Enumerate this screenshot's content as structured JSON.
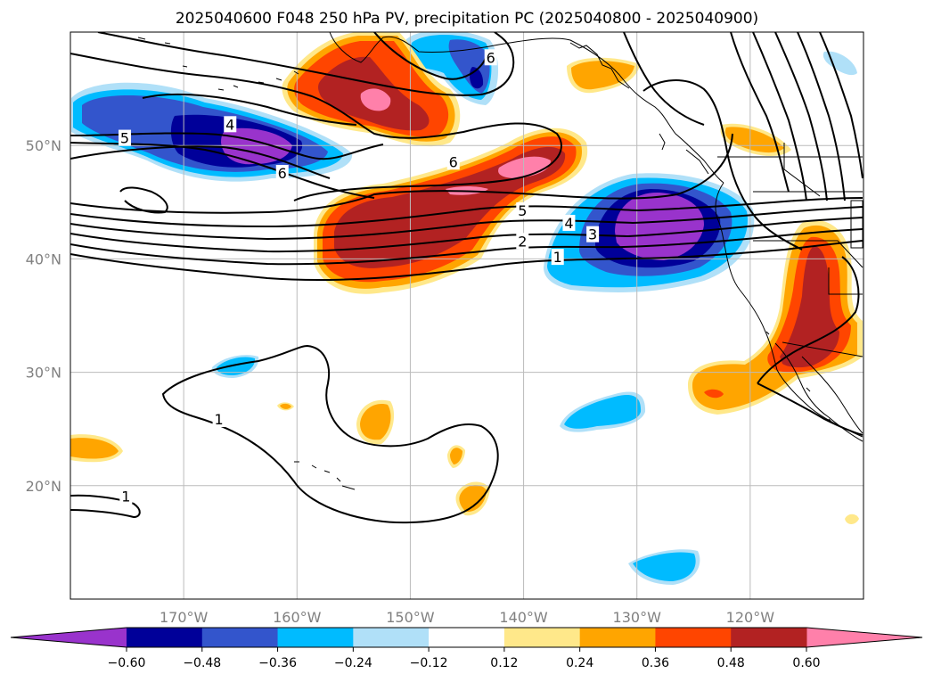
{
  "title": "2025040600 F048 250 hPa PV, precipitation PC (2025040800 - 2025040900)",
  "colors": {
    "n060": "#9933cc",
    "n048": "#000099",
    "n036": "#3355cc",
    "n024": "#00bbff",
    "n012": "#b0e0f8",
    "zero": "#ffffff",
    "p012": "#ffe88a",
    "p024": "#ffa500",
    "p036": "#ff4500",
    "p048": "#b22222",
    "p060": "#ff80aa",
    "contour": "#000000",
    "coast": "#000000",
    "grid": "#bbbbbb"
  },
  "chart_data": {
    "type": "contour-map",
    "title": "2025040600 F048 250 hPa PV, precipitation PC (2025040800 - 2025040900)",
    "lon_range": [
      -180,
      -110
    ],
    "lat_range": [
      10,
      60
    ],
    "x_ticks": [
      -170,
      -160,
      -150,
      -140,
      -130,
      -120
    ],
    "x_tick_labels": [
      "170°W",
      "160°W",
      "150°W",
      "140°W",
      "130°W",
      "120°W"
    ],
    "y_ticks": [
      20,
      30,
      40,
      50
    ],
    "y_tick_labels": [
      "20°N",
      "30°N",
      "40°N",
      "50°N"
    ],
    "grid": true,
    "colorbar": {
      "levels": [
        -0.6,
        -0.48,
        -0.36,
        -0.24,
        -0.12,
        0.12,
        0.24,
        0.36,
        0.48,
        0.6
      ],
      "labels": [
        "−0.60",
        "−0.48",
        "−0.36",
        "−0.24",
        "−0.12",
        "0.12",
        "0.24",
        "0.36",
        "0.48",
        "0.60"
      ],
      "extend": "both",
      "placement": "bottom"
    },
    "contour_labels": [
      {
        "text": "5",
        "lon": -175.2,
        "lat": 50.6
      },
      {
        "text": "4",
        "lon": -165.9,
        "lat": 51.8
      },
      {
        "text": "6",
        "lon": -161.3,
        "lat": 47.5
      },
      {
        "text": "6",
        "lon": -146.2,
        "lat": 48.5
      },
      {
        "text": "6",
        "lon": -142.9,
        "lat": 57.7
      },
      {
        "text": "5",
        "lon": -140.1,
        "lat": 44.2
      },
      {
        "text": "4",
        "lon": -136.0,
        "lat": 43.1
      },
      {
        "text": "3",
        "lon": -133.9,
        "lat": 42.1
      },
      {
        "text": "2",
        "lon": -140.1,
        "lat": 41.5
      },
      {
        "text": "1",
        "lon": -137.0,
        "lat": 40.1
      },
      {
        "text": "1",
        "lon": -166.9,
        "lat": 25.8
      },
      {
        "text": "1",
        "lon": -175.1,
        "lat": 19.0
      }
    ]
  }
}
